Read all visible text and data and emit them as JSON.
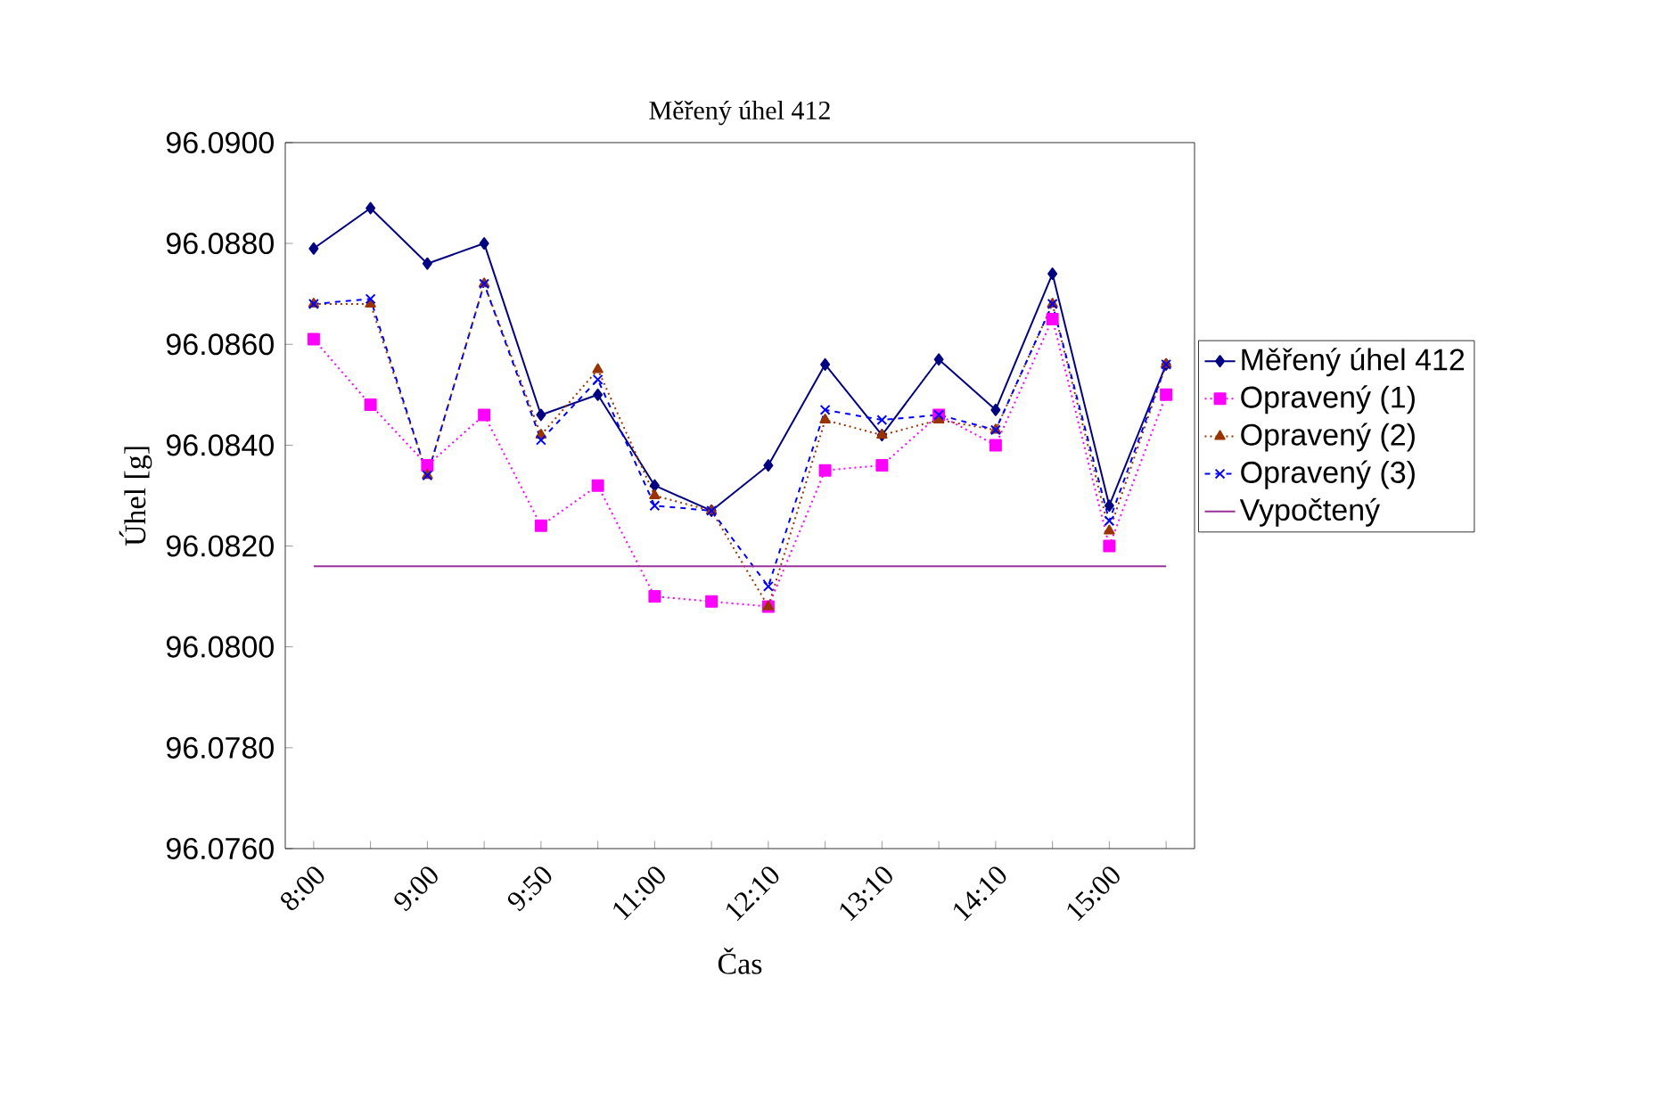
{
  "chart_data": {
    "type": "line",
    "title": "Měřený úhel 412",
    "xlabel": "Čas",
    "ylabel": "Úhel [g]",
    "categories": [
      "8:00",
      null,
      "9:00",
      null,
      "9:50",
      null,
      "11:00",
      null,
      "12:10",
      null,
      "13:10",
      null,
      "14:10",
      null,
      "15:00",
      null
    ],
    "ylim": [
      96.076,
      96.09
    ],
    "yticks": [
      {
        "value": 96.076,
        "label": "96.0760"
      },
      {
        "value": 96.078,
        "label": "96.0780"
      },
      {
        "value": 96.08,
        "label": "96.0800"
      },
      {
        "value": 96.082,
        "label": "96.0820"
      },
      {
        "value": 96.084,
        "label": "96.0840"
      },
      {
        "value": 96.086,
        "label": "96.0860"
      },
      {
        "value": 96.088,
        "label": "96.0880"
      },
      {
        "value": 96.09,
        "label": "96.0900"
      }
    ],
    "grid": false,
    "legend": "right",
    "series": [
      {
        "name": "Měřený úhel 412",
        "color": "#000080",
        "marker": "diamond",
        "line_style": "solid",
        "values": [
          96.0879,
          96.0887,
          96.0876,
          96.088,
          96.0846,
          96.085,
          96.0832,
          96.0827,
          96.0836,
          96.0856,
          96.0842,
          96.0857,
          96.0847,
          96.0874,
          96.0828,
          96.0856
        ]
      },
      {
        "name": "Opravený (1)",
        "color": "#ff00ff",
        "marker": "square",
        "line_style": "dotted",
        "values": [
          96.0861,
          96.0848,
          96.0836,
          96.0846,
          96.0824,
          96.0832,
          96.081,
          96.0809,
          96.0808,
          96.0835,
          96.0836,
          96.0846,
          96.084,
          96.0865,
          96.082,
          96.085
        ]
      },
      {
        "name": "Opravený (2)",
        "color": "#993300",
        "marker": "triangle",
        "line_style": "dotted",
        "values": [
          96.0868,
          96.0868,
          96.0834,
          96.0872,
          96.0842,
          96.0855,
          96.083,
          96.0827,
          96.0808,
          96.0845,
          96.0842,
          96.0845,
          96.0843,
          96.0868,
          96.0823,
          96.0856
        ]
      },
      {
        "name": "Opravený (3)",
        "color": "#0000ff",
        "marker": "cross",
        "line_style": "dashed",
        "values": [
          96.0868,
          96.0869,
          96.0834,
          96.0872,
          96.0841,
          96.0853,
          96.0828,
          96.0827,
          96.0812,
          96.0847,
          96.0845,
          96.0846,
          96.0843,
          96.0868,
          96.0825,
          96.0856
        ]
      },
      {
        "name": "Vypočtený",
        "color": "#993399",
        "marker": "none",
        "line_style": "solid",
        "values": [
          96.0816,
          96.0816,
          96.0816,
          96.0816,
          96.0816,
          96.0816,
          96.0816,
          96.0816,
          96.0816,
          96.0816,
          96.0816,
          96.0816,
          96.0816,
          96.0816,
          96.0816,
          96.0816
        ]
      }
    ]
  }
}
